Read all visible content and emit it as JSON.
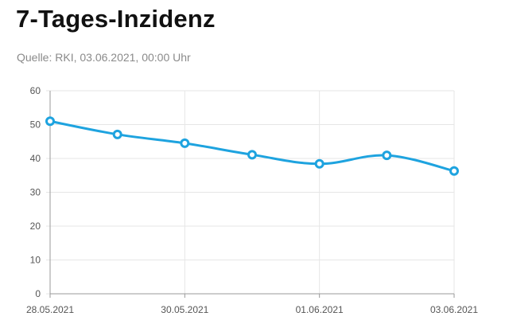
{
  "header": {
    "title": "7-Tages-Inzidenz",
    "subtitle": "Quelle: RKI, 03.06.2021, 00:00 Uhr"
  },
  "colors": {
    "line": "#1ea3df",
    "grid": "#e6e6e6",
    "axis": "#999999"
  },
  "chart_data": {
    "type": "line",
    "title": "7-Tages-Inzidenz",
    "x": [
      "28.05.2021",
      "29.05.2021",
      "30.05.2021",
      "31.05.2021",
      "01.06.2021",
      "02.06.2021",
      "03.06.2021"
    ],
    "x_tick_labels": [
      "28.05.2021",
      "30.05.2021",
      "01.06.2021",
      "03.06.2021"
    ],
    "series": [
      {
        "values": [
          51.0,
          47.1,
          44.5,
          41.1,
          38.4,
          40.9,
          36.3
        ]
      }
    ],
    "ylim": [
      0,
      60
    ],
    "y_ticks": [
      0,
      10,
      20,
      30,
      40,
      50,
      60
    ],
    "grid": true,
    "xlabel": "",
    "ylabel": ""
  }
}
